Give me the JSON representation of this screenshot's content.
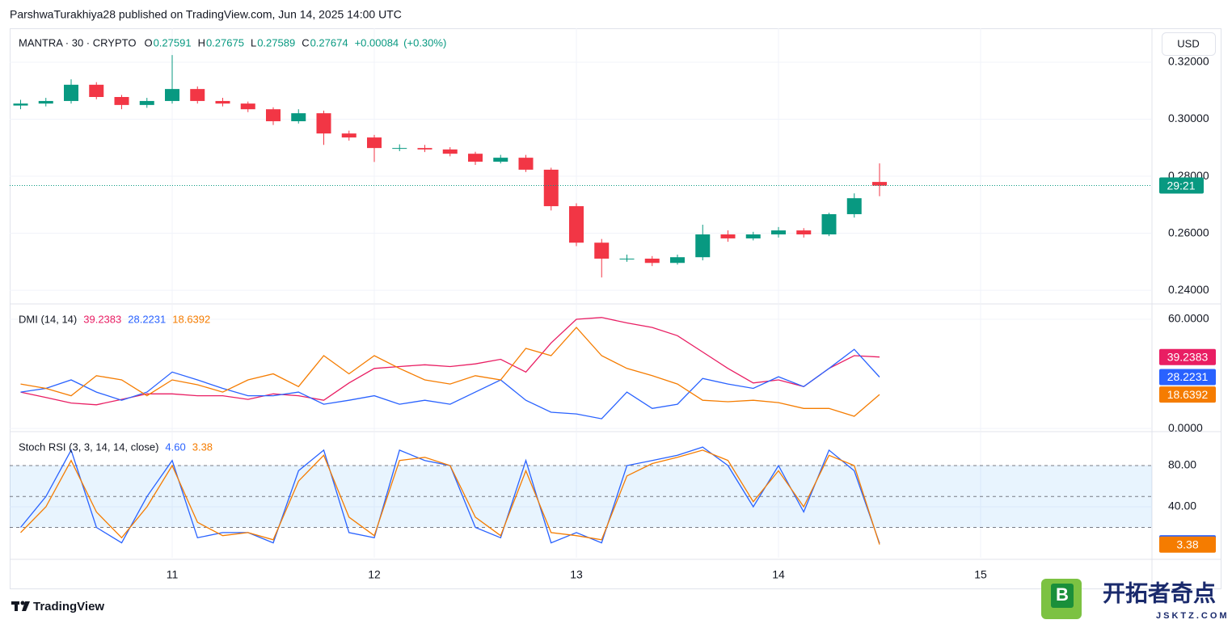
{
  "header": {
    "attribution": "ParshwaTurakhiya28 published on TradingView.com, Jun 14, 2025 14:00 UTC",
    "brand": "TradingView",
    "watermark_title": "开拓者奇点",
    "watermark_url": "JSKTZ.COM"
  },
  "chart_data": [
    {
      "type": "candlestick",
      "title": "MANTRA · 30 · CRYPTO",
      "ohlc_legend": [
        {
          "label": "O",
          "value": 0.27591
        },
        {
          "label": "H",
          "value": 0.27675
        },
        {
          "label": "L",
          "value": 0.27589
        },
        {
          "label": "C",
          "value": 0.27674
        }
      ],
      "change": "+0.00084",
      "change_pct": "(+0.30%)",
      "currency": "USD",
      "x": [
        10.25,
        10.375,
        10.5,
        10.625,
        10.75,
        10.875,
        11,
        11.125,
        11.25,
        11.375,
        11.5,
        11.625,
        11.75,
        11.875,
        12,
        12.125,
        12.25,
        12.375,
        12.5,
        12.625,
        12.75,
        12.875,
        13,
        13.125,
        13.25,
        13.375,
        13.5,
        13.625,
        13.75,
        13.875,
        14,
        14.125,
        14.25,
        14.375,
        14.5
      ],
      "open": [
        0.3048,
        0.3055,
        0.3064,
        0.3121,
        0.3078,
        0.305,
        0.3064,
        0.3106,
        0.3064,
        0.3055,
        0.3035,
        0.2993,
        0.3021,
        0.295,
        0.2936,
        0.2899,
        0.2899,
        0.2894,
        0.2879,
        0.2851,
        0.2865,
        0.2823,
        0.2695,
        0.2567,
        0.2511,
        0.2511,
        0.2496,
        0.2516,
        0.2596,
        0.2582,
        0.2596,
        0.261,
        0.2596,
        0.2667,
        0.278
      ],
      "high": [
        0.3068,
        0.3075,
        0.314,
        0.313,
        0.3085,
        0.3075,
        0.3225,
        0.3115,
        0.3075,
        0.3062,
        0.3042,
        0.3035,
        0.303,
        0.296,
        0.2945,
        0.2912,
        0.291,
        0.2902,
        0.2886,
        0.2875,
        0.2875,
        0.283,
        0.2705,
        0.258,
        0.2525,
        0.252,
        0.2525,
        0.263,
        0.261,
        0.2605,
        0.2622,
        0.2618,
        0.2672,
        0.274,
        0.2845
      ],
      "low": [
        0.3035,
        0.3045,
        0.3055,
        0.307,
        0.3035,
        0.304,
        0.3055,
        0.3055,
        0.3045,
        0.3025,
        0.298,
        0.2985,
        0.291,
        0.2925,
        0.285,
        0.2888,
        0.2885,
        0.287,
        0.284,
        0.2845,
        0.2815,
        0.268,
        0.2555,
        0.2445,
        0.25,
        0.2485,
        0.249,
        0.2505,
        0.257,
        0.2575,
        0.2585,
        0.2585,
        0.259,
        0.2655,
        0.273
      ],
      "close": [
        0.3055,
        0.3064,
        0.3121,
        0.3078,
        0.305,
        0.3064,
        0.3106,
        0.3064,
        0.3055,
        0.3035,
        0.2993,
        0.3021,
        0.295,
        0.2936,
        0.2899,
        0.2899,
        0.2894,
        0.2879,
        0.2851,
        0.2865,
        0.2823,
        0.2695,
        0.2567,
        0.2511,
        0.2511,
        0.2496,
        0.2516,
        0.2596,
        0.2582,
        0.2596,
        0.261,
        0.2596,
        0.2667,
        0.2723,
        0.2767
      ],
      "up_color": "#089981",
      "down_color": "#f23645",
      "last_price": 0.27674,
      "countdown": "29:21",
      "xlim": [
        10.196,
        15.848
      ],
      "xticks": [
        11,
        12,
        13,
        14,
        15
      ],
      "ylim": [
        0.2355,
        0.3319
      ],
      "yticks": [
        {
          "value": 0.24,
          "label": "0.24000"
        },
        {
          "value": 0.26,
          "label": "0.26000"
        },
        {
          "value": 0.28,
          "label": "0.28000"
        },
        {
          "value": 0.3,
          "label": "0.30000"
        },
        {
          "value": 0.32,
          "label": "0.32000"
        }
      ],
      "grid": true
    },
    {
      "type": "line",
      "title": "DMI (14, 14)",
      "x": [
        10.25,
        10.375,
        10.5,
        10.625,
        10.75,
        10.875,
        11,
        11.125,
        11.25,
        11.375,
        11.5,
        11.625,
        11.75,
        11.875,
        12,
        12.125,
        12.25,
        12.375,
        12.5,
        12.625,
        12.75,
        12.875,
        13,
        13.125,
        13.25,
        13.375,
        13.5,
        13.625,
        13.75,
        13.875,
        14,
        14.125,
        14.25,
        14.375,
        14.5
      ],
      "series": [
        {
          "color": "#e91e63",
          "values": [
            20,
            17,
            14,
            13,
            16,
            19,
            19,
            18,
            18,
            16,
            19,
            18,
            15.5,
            25,
            33,
            34,
            35,
            34,
            35.5,
            38,
            31,
            47,
            60,
            61,
            58,
            55.5,
            51,
            42,
            33,
            25,
            26.7,
            23,
            33,
            40,
            39.2383
          ]
        },
        {
          "color": "#2962ff",
          "values": [
            20,
            22,
            26.7,
            20,
            15.5,
            20,
            31,
            26.7,
            22,
            18,
            18,
            20,
            13.3,
            15.5,
            18,
            13.3,
            15.5,
            13.3,
            20,
            26.7,
            15.5,
            8.9,
            8,
            5.3,
            20,
            11,
            13.3,
            27.5,
            24.4,
            22,
            28.4,
            23,
            33,
            43.5,
            28.2231
          ]
        },
        {
          "color": "#f57c00",
          "values": [
            24.4,
            22,
            18,
            29,
            26.7,
            18,
            26.7,
            24,
            20,
            26.7,
            30,
            23,
            40,
            30,
            40,
            33,
            26.7,
            24.4,
            29,
            26.7,
            44,
            40,
            55.5,
            40,
            33,
            29,
            24.4,
            15.5,
            14.7,
            15.5,
            14.2,
            11,
            11,
            6.7,
            18.6392
          ]
        }
      ],
      "ylim": [
        -1.3,
        68
      ],
      "yticks": [
        {
          "value": 0,
          "label": "0.0000"
        },
        {
          "value": 60,
          "label": "60.0000"
        }
      ],
      "grid": true
    },
    {
      "type": "line",
      "title": "Stoch RSI (3, 3, 14, 14, close)",
      "x": [
        10.25,
        10.375,
        10.5,
        10.625,
        10.75,
        10.875,
        11,
        11.125,
        11.25,
        11.375,
        11.5,
        11.625,
        11.75,
        11.875,
        12,
        12.125,
        12.25,
        12.375,
        12.5,
        12.625,
        12.75,
        12.875,
        13,
        13.125,
        13.25,
        13.375,
        13.5,
        13.625,
        13.75,
        13.875,
        14,
        14.125,
        14.25,
        14.375,
        14.5
      ],
      "series": [
        {
          "color": "#2962ff",
          "values": [
            20,
            50,
            95,
            20,
            5,
            50,
            85,
            10,
            15,
            15,
            5,
            75,
            95,
            15,
            10,
            95,
            85,
            80,
            20,
            10,
            85,
            5,
            15,
            5,
            80,
            85,
            90,
            98,
            80,
            40,
            80,
            35,
            95,
            75,
            4.6
          ],
          "value_labels": [
            null,
            null,
            null,
            null,
            null,
            null,
            null,
            null,
            null,
            null,
            null,
            null,
            null,
            null,
            null,
            null,
            null,
            null,
            null,
            null,
            null,
            null,
            null,
            null,
            null,
            null,
            null,
            null,
            null,
            null,
            null,
            null,
            null,
            null,
            "4.60"
          ]
        },
        {
          "color": "#f57c00",
          "values": [
            15,
            40,
            85,
            35,
            10,
            40,
            80,
            25,
            12,
            15,
            8,
            65,
            90,
            30,
            12,
            85,
            88,
            80,
            30,
            12,
            75,
            15,
            12,
            8,
            70,
            82,
            88,
            95,
            85,
            45,
            75,
            40,
            90,
            80,
            3.38
          ]
        }
      ],
      "ylim": [
        -9.4,
        112.2
      ],
      "yticks": [
        {
          "value": 40,
          "label": "40.00"
        },
        {
          "value": 80,
          "label": "80.00"
        }
      ],
      "band": [
        20,
        80
      ],
      "dashed_levels": [
        20,
        50,
        80
      ],
      "grid": true
    }
  ]
}
